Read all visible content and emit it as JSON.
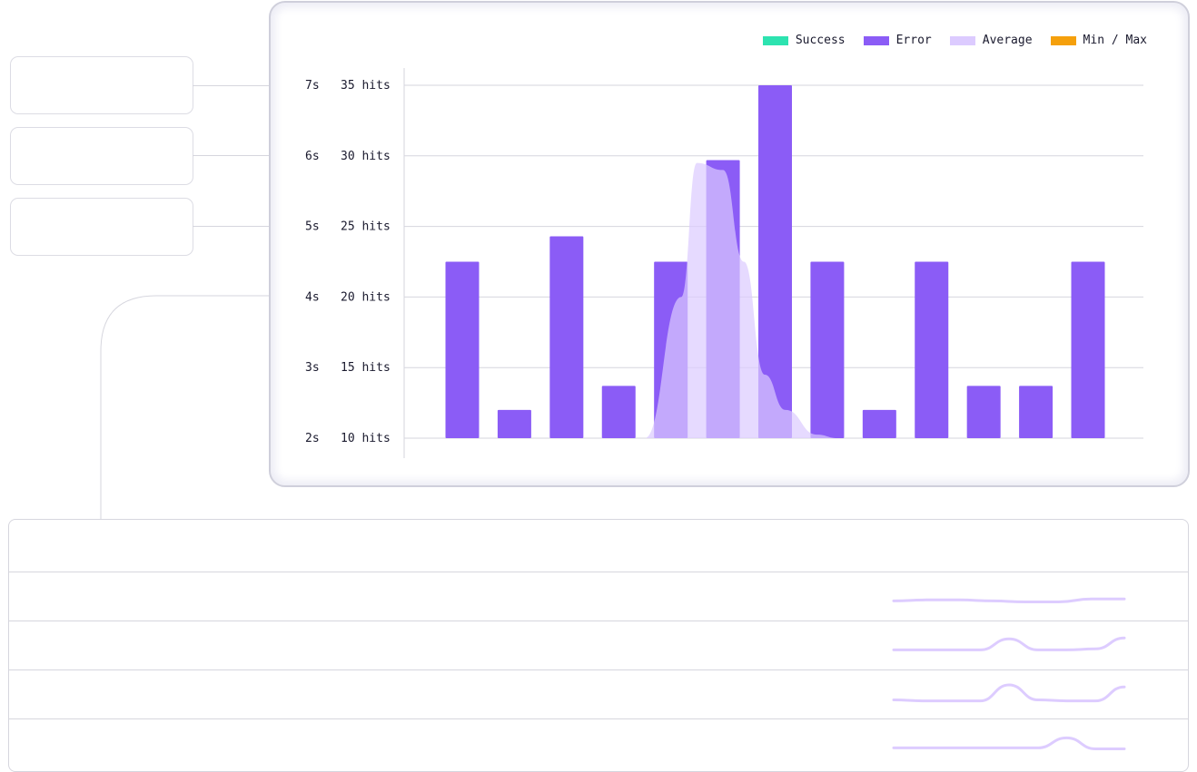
{
  "colors": {
    "success": "#2de3b0",
    "error": "#8b5cf6",
    "average": "#dccbff",
    "min_max": "#f5a00c",
    "spark": "#ddccff"
  },
  "cards": [
    {},
    {},
    {}
  ],
  "chart_data": {
    "type": "bar",
    "legend": [
      "Success",
      "Error",
      "Average",
      "Min / Max"
    ],
    "legend_position": "top-right",
    "grid": true,
    "y_hits": {
      "ticks": [
        "10 hits",
        "15 hits",
        "20 hits",
        "25 hits",
        "30 hits",
        "35 hits"
      ],
      "ylim": [
        10,
        35
      ]
    },
    "y_seconds": {
      "ticks": [
        "2s",
        "3s",
        "4s",
        "5s",
        "6s",
        "7s"
      ],
      "ylim": [
        2,
        7
      ]
    },
    "series": [
      {
        "name": "Error",
        "values": [
          22.5,
          12,
          24.3,
          13.7,
          22.5,
          29.7,
          35,
          22.5,
          12,
          22.5,
          13.7,
          13.7,
          22.5
        ]
      }
    ],
    "average": {
      "name": "Average",
      "x": [
        0,
        3.5,
        4.2,
        4.5,
        5.0,
        5.4,
        5.8,
        6.2,
        6.8,
        7.2
      ],
      "values": [
        0,
        0,
        4,
        5.9,
        5.8,
        4.5,
        2.9,
        2.4,
        2.05,
        2.0
      ]
    }
  },
  "table": {
    "rows": [
      {
        "trend": [
          0.3,
          0.35,
          0.35,
          0.3,
          0.25,
          0.25,
          0.4,
          0.4
        ]
      },
      {
        "trend": [
          0.3,
          0.3,
          0.3,
          0.3,
          0.85,
          0.3,
          0.3,
          0.35,
          0.9
        ]
      },
      {
        "trend": [
          0.25,
          0.2,
          0.2,
          0.2,
          1.0,
          0.25,
          0.2,
          0.2,
          0.9
        ]
      },
      {
        "trend": [
          0.3,
          0.3,
          0.3,
          0.3,
          0.3,
          0.3,
          0.8,
          0.25,
          0.25
        ]
      }
    ]
  }
}
